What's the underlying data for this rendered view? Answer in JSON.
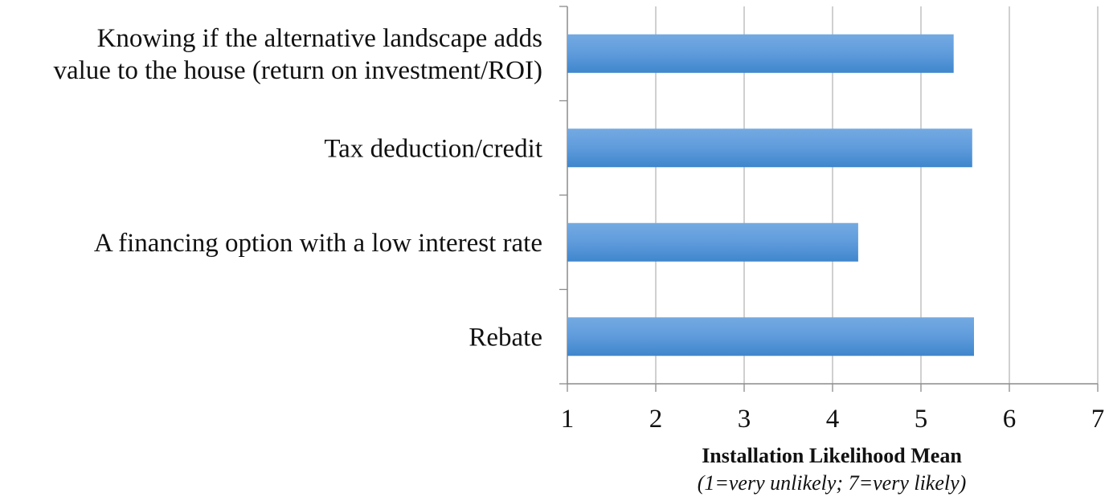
{
  "chart_data": {
    "type": "bar",
    "orientation": "horizontal",
    "categories": [
      [
        "Knowing if the alternative landscape adds",
        "value to the house (return on investment/ROI)"
      ],
      [
        "Tax deduction/credit"
      ],
      [
        "A financing option with a low interest rate"
      ],
      [
        "Rebate"
      ]
    ],
    "values": [
      5.37,
      5.58,
      4.29,
      5.6
    ],
    "xlim": [
      1,
      7
    ],
    "xticks": [
      "1",
      "2",
      "3",
      "4",
      "5",
      "6",
      "7"
    ],
    "xlabel": "Installation Likelihood Mean",
    "xlabel_note": "(1=very unlikely; 7=very likely)",
    "ylabel": "",
    "grid": true,
    "legend": "none",
    "bar_color_light": "#6fa6e0",
    "bar_color_dark": "#3f86cc",
    "grid_color": "#b7b7b7"
  }
}
